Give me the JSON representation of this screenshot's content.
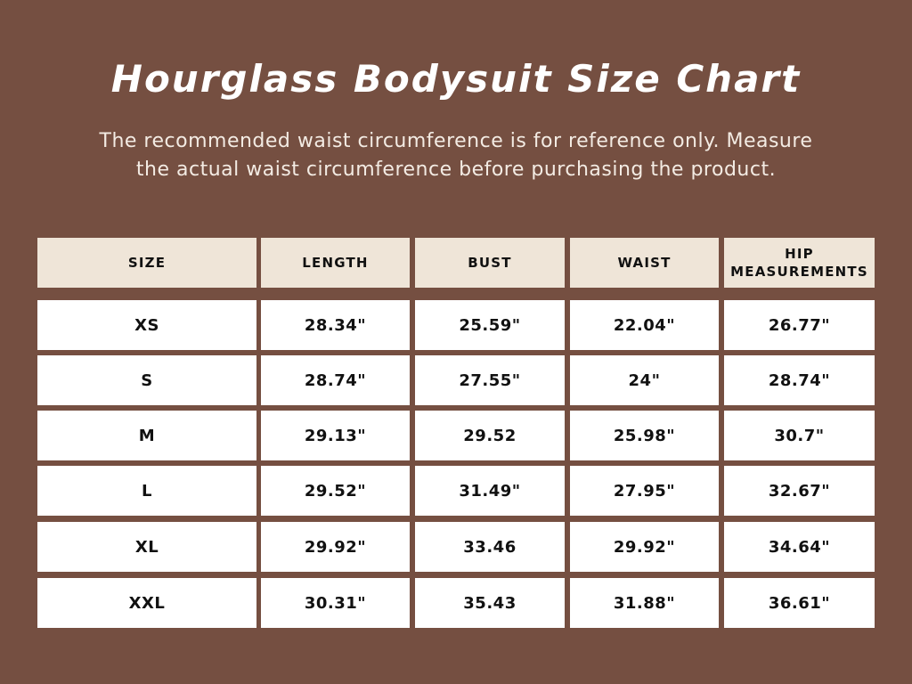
{
  "title": "Hourglass Bodysuit Size Chart",
  "subtitle_lines": [
    "The recommended waist circumference is for reference only. Measure",
    "the actual waist circumference before purchasing the product."
  ],
  "colors": {
    "background": "#754f41",
    "header_fill": "#efe5d8",
    "cell_fill": "#ffffff",
    "text": "#111111"
  },
  "table": {
    "headers": [
      "SIZE",
      "LENGTH",
      "BUST",
      "WAIST",
      "HIP\nMEASUREMENTS"
    ],
    "rows": [
      [
        "XS",
        "28.34\"",
        "25.59\"",
        "22.04\"",
        "26.77\""
      ],
      [
        "S",
        "28.74\"",
        "27.55\"",
        "24\"",
        "28.74\""
      ],
      [
        "M",
        "29.13\"",
        "29.52",
        "25.98\"",
        "30.7\""
      ],
      [
        "L",
        "29.52\"",
        "31.49\"",
        "27.95\"",
        "32.67\""
      ],
      [
        "XL",
        "29.92\"",
        "33.46",
        "29.92\"",
        "34.64\""
      ],
      [
        "XXL",
        "30.31\"",
        "35.43",
        "31.88\"",
        "36.61\""
      ]
    ]
  }
}
